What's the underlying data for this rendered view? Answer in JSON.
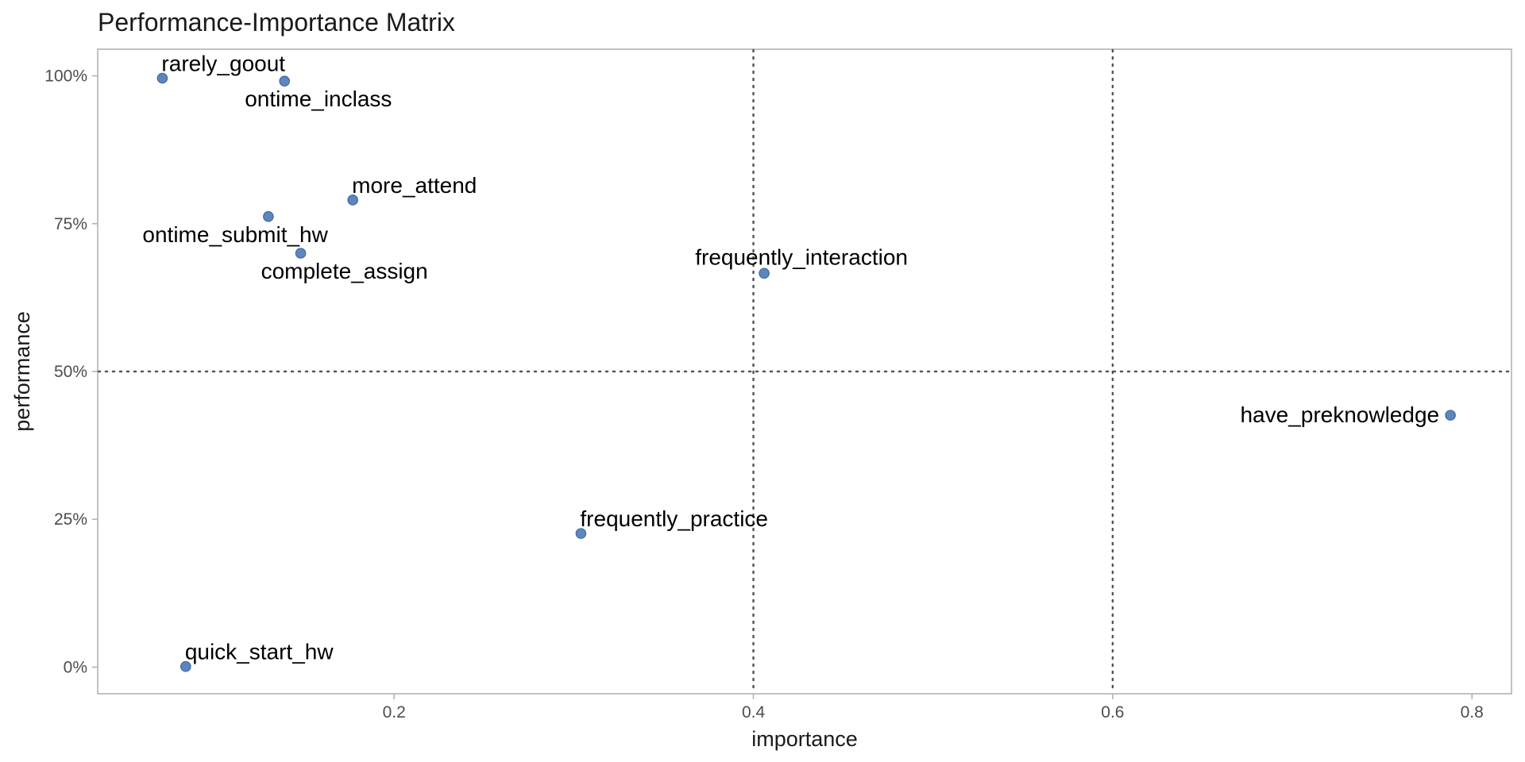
{
  "chart_data": {
    "type": "scatter",
    "title": "Performance-Importance Matrix",
    "xlabel": "importance",
    "ylabel": "performance",
    "xlim": [
      0.035,
      0.822
    ],
    "ylim": [
      -0.045,
      1.045
    ],
    "x_ticks": [
      {
        "value": 0.2,
        "label": "0.2"
      },
      {
        "value": 0.4,
        "label": "0.4"
      },
      {
        "value": 0.6,
        "label": "0.6"
      },
      {
        "value": 0.8,
        "label": "0.8"
      }
    ],
    "y_ticks": [
      {
        "value": 0.0,
        "label": "0%"
      },
      {
        "value": 0.25,
        "label": "25%"
      },
      {
        "value": 0.5,
        "label": "50%"
      },
      {
        "value": 0.75,
        "label": "75%"
      },
      {
        "value": 1.0,
        "label": "100%"
      }
    ],
    "reference_lines": {
      "vertical": [
        0.4,
        0.6
      ],
      "horizontal": [
        0.5
      ]
    },
    "point_color": "#4e79b5",
    "grid": false,
    "points": [
      {
        "label": "rarely_goout",
        "x": 0.071,
        "y": 0.996,
        "label_pos": "above-right"
      },
      {
        "label": "ontime_inclass",
        "x": 0.139,
        "y": 0.991,
        "label_pos": "below-right"
      },
      {
        "label": "more_attend",
        "x": 0.177,
        "y": 0.79,
        "label_pos": "above-right"
      },
      {
        "label": "ontime_submit_hw",
        "x": 0.13,
        "y": 0.762,
        "label_pos": "below-left"
      },
      {
        "label": "complete_assign",
        "x": 0.148,
        "y": 0.7,
        "label_pos": "below-right"
      },
      {
        "label": "frequently_interaction",
        "x": 0.406,
        "y": 0.666,
        "label_pos": "above"
      },
      {
        "label": "have_preknowledge",
        "x": 0.788,
        "y": 0.426,
        "label_pos": "left"
      },
      {
        "label": "frequently_practice",
        "x": 0.304,
        "y": 0.226,
        "label_pos": "above-right"
      },
      {
        "label": "quick_start_hw",
        "x": 0.084,
        "y": 0.001,
        "label_pos": "above-right"
      }
    ]
  }
}
